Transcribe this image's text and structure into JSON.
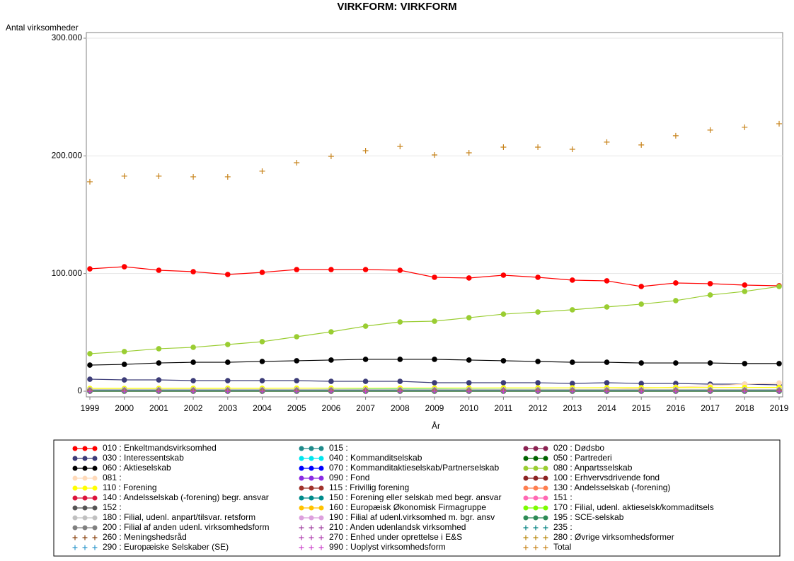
{
  "chart_data": {
    "type": "line",
    "title": "VIRKFORM: VIRKFORM",
    "y_label": "Antal virksomheder",
    "x_label": "År",
    "x": [
      1999,
      2000,
      2001,
      2002,
      2003,
      2004,
      2005,
      2006,
      2007,
      2008,
      2009,
      2010,
      2011,
      2012,
      2013,
      2014,
      2015,
      2016,
      2017,
      2018,
      2019
    ],
    "xlim": [
      1999,
      2019
    ],
    "xticks": [
      1999,
      2000,
      2001,
      2002,
      2003,
      2004,
      2005,
      2006,
      2007,
      2008,
      2009,
      2010,
      2011,
      2012,
      2013,
      2014,
      2015,
      2016,
      2017,
      2018,
      2019
    ],
    "ylim": [
      0,
      300000
    ],
    "yticks": [
      0,
      {
        "value": 100000,
        "label": "100.000"
      },
      {
        "value": 200000,
        "label": "200.000"
      },
      {
        "value": 300000,
        "label": "300.000"
      }
    ],
    "grid": true,
    "series": [
      {
        "name": "010 : Enkeltmandsvirksomhed",
        "color": "#ff0000",
        "marker": "circle",
        "values": [
          104000,
          105800,
          102800,
          101600,
          99200,
          101000,
          103400,
          103400,
          103400,
          102800,
          96800,
          96200,
          98600,
          96800,
          94400,
          93800,
          89000,
          92000,
          91400,
          90200,
          89600
        ]
      },
      {
        "name": "015 :",
        "color": "#1f8a8a",
        "marker": "circle",
        "values": [
          0,
          0,
          0,
          0,
          0,
          0,
          0,
          0,
          0,
          0,
          0,
          0,
          0,
          0,
          0,
          0,
          0,
          0,
          0,
          0,
          0
        ]
      },
      {
        "name": "020 : Dødsbo",
        "color": "#8b2252",
        "marker": "circle",
        "values": [
          1200,
          1200,
          1200,
          1200,
          1100,
          1100,
          1100,
          1100,
          1000,
          1000,
          1000,
          1000,
          1000,
          900,
          900,
          900,
          900,
          900,
          800,
          800,
          800
        ]
      },
      {
        "name": "030 : Interessentskab",
        "color": "#3c3c78",
        "marker": "circle",
        "values": [
          10200,
          9600,
          9600,
          9000,
          9000,
          9000,
          9000,
          8400,
          8400,
          8400,
          7200,
          7200,
          7200,
          7200,
          6600,
          7200,
          6600,
          6600,
          6000,
          6000,
          5400
        ]
      },
      {
        "name": "040 : Kommanditselskab",
        "color": "#00e5ee",
        "marker": "circle",
        "values": [
          1000,
          1000,
          1100,
          1100,
          1200,
          1300,
          1400,
          1600,
          1800,
          1900,
          1800,
          1700,
          1600,
          1500,
          1400,
          1300,
          1200,
          1100,
          1000,
          1000,
          900
        ]
      },
      {
        "name": "050 : Partrederi",
        "color": "#006400",
        "marker": "circle",
        "values": [
          600,
          600,
          600,
          550,
          550,
          500,
          500,
          500,
          450,
          450,
          450,
          400,
          400,
          400,
          350,
          350,
          350,
          300,
          300,
          300,
          300
        ]
      },
      {
        "name": "060 : Aktieselskab",
        "color": "#000000",
        "marker": "circle",
        "values": [
          22200,
          22800,
          24000,
          24600,
          24600,
          25300,
          25900,
          26500,
          27100,
          27100,
          27100,
          26500,
          25900,
          25300,
          24600,
          24600,
          24000,
          24000,
          24000,
          23500,
          23500
        ]
      },
      {
        "name": "070 : Kommanditaktieselskab/Partnerselskab",
        "color": "#0000ff",
        "marker": "circle",
        "values": [
          100,
          100,
          100,
          100,
          100,
          100,
          100,
          100,
          100,
          100,
          100,
          100,
          100,
          200,
          300,
          400,
          500,
          600,
          700,
          800,
          900
        ]
      },
      {
        "name": "080 : Anpartsselskab",
        "color": "#9acd32",
        "marker": "circle",
        "values": [
          31900,
          33700,
          36100,
          37300,
          39700,
          42100,
          46300,
          50500,
          55300,
          58900,
          59500,
          62500,
          65500,
          67300,
          69200,
          71600,
          74000,
          77000,
          81800,
          84800,
          89000
        ]
      },
      {
        "name": "081 :",
        "color": "#ffdab9",
        "marker": "circle",
        "values": [
          0,
          0,
          0,
          0,
          0,
          0,
          0,
          0,
          0,
          0,
          0,
          0,
          0,
          0,
          500,
          1500,
          2500,
          3500,
          4500,
          6000,
          7000
        ]
      },
      {
        "name": "090 : Fond",
        "color": "#8a2be2",
        "marker": "circle",
        "values": [
          100,
          100,
          100,
          100,
          100,
          100,
          100,
          100,
          100,
          100,
          100,
          100,
          100,
          100,
          100,
          100,
          100,
          100,
          100,
          100,
          100
        ]
      },
      {
        "name": "100 : Erhvervsdrivende fond",
        "color": "#8b2323",
        "marker": "circle",
        "values": [
          1300,
          1300,
          1300,
          1300,
          1300,
          1300,
          1300,
          1300,
          1300,
          1300,
          1300,
          1300,
          1300,
          1300,
          1300,
          1300,
          1300,
          1300,
          1300,
          1300,
          1300
        ]
      },
      {
        "name": "110 : Forening",
        "color": "#ffff00",
        "marker": "circle",
        "values": [
          2400,
          2400,
          2400,
          2500,
          2500,
          2500,
          2600,
          2600,
          2600,
          2700,
          2700,
          2700,
          2800,
          2800,
          2900,
          3000,
          3000,
          3100,
          3200,
          3200,
          3300
        ]
      },
      {
        "name": "115 : Frivillig forening",
        "color": "#a0342c",
        "marker": "circle",
        "values": [
          300,
          300,
          300,
          300,
          300,
          300,
          300,
          300,
          300,
          300,
          300,
          300,
          300,
          300,
          300,
          300,
          300,
          300,
          300,
          300,
          300
        ]
      },
      {
        "name": "130 : Andelsselskab (-forening)",
        "color": "#ff7f50",
        "marker": "circle",
        "values": [
          400,
          400,
          400,
          400,
          400,
          400,
          400,
          400,
          400,
          400,
          400,
          400,
          400,
          400,
          400,
          400,
          400,
          400,
          400,
          400,
          400
        ]
      },
      {
        "name": "140 : Andelsselskab (-forening) begr. ansvar",
        "color": "#dc143c",
        "marker": "circle",
        "values": [
          500,
          500,
          500,
          500,
          500,
          500,
          500,
          500,
          500,
          500,
          500,
          500,
          500,
          500,
          500,
          500,
          500,
          500,
          500,
          500,
          500
        ]
      },
      {
        "name": "150 : Forening eller selskab med begr. ansvar",
        "color": "#008b8b",
        "marker": "circle",
        "values": [
          900,
          900,
          900,
          900,
          900,
          900,
          900,
          900,
          900,
          900,
          900,
          900,
          900,
          900,
          900,
          900,
          900,
          900,
          900,
          900,
          900
        ]
      },
      {
        "name": "151 :",
        "color": "#ff69b4",
        "marker": "circle",
        "values": [
          0,
          0,
          0,
          0,
          0,
          0,
          0,
          0,
          0,
          0,
          0,
          0,
          0,
          0,
          0,
          0,
          0,
          0,
          0,
          0,
          0
        ]
      },
      {
        "name": "152 :",
        "color": "#555555",
        "marker": "circle",
        "values": [
          0,
          0,
          0,
          0,
          0,
          0,
          0,
          0,
          0,
          0,
          0,
          0,
          0,
          0,
          0,
          0,
          0,
          0,
          0,
          0,
          0
        ]
      },
      {
        "name": "160 : Europæisk Økonomisk Firmagruppe",
        "color": "#ffc200",
        "marker": "circle",
        "values": [
          0,
          0,
          0,
          0,
          0,
          0,
          0,
          0,
          0,
          0,
          0,
          0,
          0,
          0,
          0,
          0,
          0,
          0,
          0,
          0,
          0
        ]
      },
      {
        "name": "170 : Filial, udenl. aktieselsk/kommaditsels",
        "color": "#7cfc00",
        "marker": "circle",
        "values": [
          100,
          100,
          100,
          100,
          100,
          100,
          100,
          100,
          100,
          100,
          100,
          100,
          100,
          100,
          100,
          100,
          100,
          100,
          100,
          100,
          100
        ]
      },
      {
        "name": "180 : Filial, udenl. anpart/tilsvar. retsform",
        "color": "#c0c0c0",
        "marker": "circle",
        "values": [
          1500,
          1500,
          1500,
          1500,
          1500,
          1500,
          1500,
          1500,
          1500,
          1500,
          1500,
          1500,
          1500,
          1500,
          1500,
          1500,
          1500,
          1500,
          1500,
          1500,
          1500
        ]
      },
      {
        "name": "190 : Filial af udenl.virksomhed m. bgr. ansv",
        "color": "#dda0dd",
        "marker": "circle",
        "values": [
          100,
          100,
          100,
          100,
          100,
          100,
          100,
          100,
          100,
          100,
          100,
          100,
          100,
          100,
          100,
          100,
          100,
          100,
          100,
          100,
          100
        ]
      },
      {
        "name": "195 : SCE-selskab",
        "color": "#2e8b57",
        "marker": "circle",
        "values": [
          0,
          0,
          0,
          0,
          0,
          0,
          0,
          0,
          0,
          0,
          0,
          0,
          0,
          0,
          0,
          0,
          0,
          0,
          0,
          0,
          0
        ]
      },
      {
        "name": "200 : Filial af anden udenl. virksomhedsform",
        "color": "#808080",
        "marker": "circle",
        "values": [
          500,
          500,
          500,
          500,
          500,
          500,
          500,
          500,
          500,
          500,
          500,
          500,
          500,
          500,
          500,
          500,
          500,
          500,
          500,
          500,
          500
        ]
      },
      {
        "name": "210 : Anden udenlandsk virksomhed",
        "color": "#a040a0",
        "marker": "plus",
        "values": [
          300,
          300,
          300,
          300,
          300,
          300,
          300,
          300,
          300,
          300,
          300,
          300,
          300,
          300,
          300,
          300,
          300,
          300,
          300,
          300,
          300
        ]
      },
      {
        "name": "235 :",
        "color": "#008080",
        "marker": "plus",
        "values": [
          0,
          0,
          0,
          0,
          0,
          0,
          0,
          0,
          0,
          0,
          0,
          0,
          0,
          0,
          0,
          0,
          0,
          0,
          0,
          0,
          0
        ]
      },
      {
        "name": "260 : Meningshedsråd",
        "color": "#8b4513",
        "marker": "plus",
        "values": [
          0,
          0,
          0,
          0,
          0,
          0,
          0,
          0,
          0,
          0,
          0,
          0,
          0,
          0,
          0,
          0,
          0,
          0,
          0,
          0,
          0
        ]
      },
      {
        "name": "270 : Enhed under oprettelse i E&S",
        "color": "#b040b0",
        "marker": "plus",
        "values": [
          0,
          0,
          0,
          0,
          0,
          0,
          0,
          0,
          0,
          0,
          0,
          0,
          0,
          0,
          0,
          0,
          0,
          0,
          0,
          0,
          0
        ]
      },
      {
        "name": "280 : Øvrige virksomhedsformer",
        "color": "#b8860b",
        "marker": "plus",
        "values": [
          1000,
          1000,
          1000,
          1000,
          1000,
          1000,
          1000,
          1000,
          1000,
          1000,
          1000,
          1000,
          1000,
          1000,
          1000,
          1000,
          1000,
          1000,
          1000,
          1000,
          1000
        ]
      },
      {
        "name": "290 : Europæiske Selskaber (SE)",
        "color": "#3399cc",
        "marker": "plus",
        "values": [
          0,
          0,
          0,
          0,
          0,
          0,
          0,
          0,
          0,
          0,
          0,
          0,
          0,
          0,
          0,
          0,
          0,
          0,
          0,
          0,
          0
        ]
      },
      {
        "name": "990 : Uoplyst virksomhedsform",
        "color": "#cc44cc",
        "marker": "plus",
        "values": [
          0,
          0,
          0,
          0,
          0,
          0,
          0,
          0,
          0,
          0,
          0,
          0,
          0,
          0,
          0,
          0,
          0,
          0,
          0,
          0,
          0
        ]
      },
      {
        "name": "Total",
        "color": "#c8841c",
        "marker": "plus",
        "values": [
          178000,
          182800,
          182800,
          182200,
          182200,
          187000,
          194200,
          199600,
          204400,
          208000,
          200800,
          202600,
          207400,
          207400,
          205600,
          211700,
          209300,
          217100,
          221900,
          224300,
          227300
        ]
      }
    ]
  }
}
